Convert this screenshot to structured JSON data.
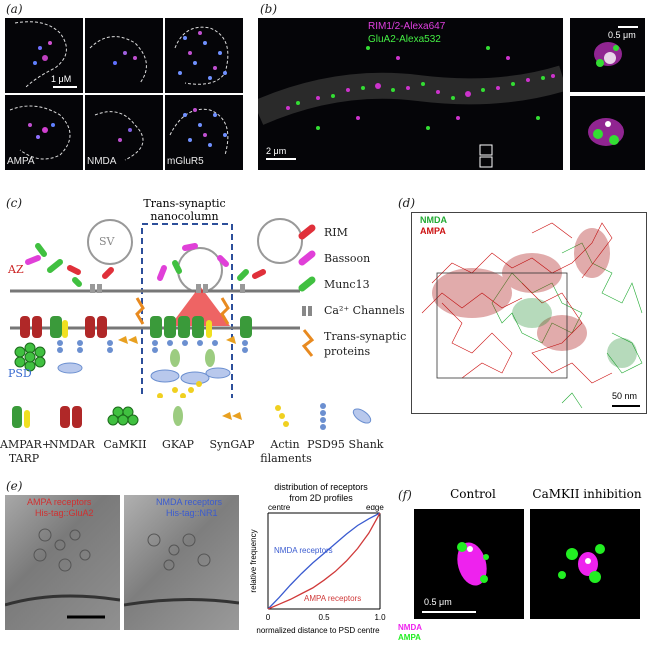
{
  "panel_a": {
    "label": "(a)",
    "scale": "1 μM",
    "captions": [
      "AMPA",
      "NMDA",
      "mGluR5"
    ]
  },
  "panel_b": {
    "label": "(b)",
    "legend": [
      {
        "text": "RIM1/2-Alexa647",
        "color": "#e040e0"
      },
      {
        "text": "GluA2-Alexa532",
        "color": "#44ee44"
      }
    ],
    "scale_main": "2 μm",
    "scale_inset": "0.5 μm"
  },
  "panel_c": {
    "label": "(c)",
    "title_line1": "Trans-synaptic",
    "title_line2": "nanocolumn",
    "sv": "SV",
    "az": "AZ",
    "psd": "PSD",
    "legend": [
      "RIM",
      "Bassoon",
      "Munc13",
      "Ca²⁺ Channels",
      "Trans-synaptic",
      "proteins"
    ],
    "bottom": [
      {
        "text": "AMPAR+",
        "sub": "TARP"
      },
      {
        "text": "NMDAR",
        "sub": ""
      },
      {
        "text": "CaMKII",
        "sub": ""
      },
      {
        "text": "GKAP",
        "sub": ""
      },
      {
        "text": "SynGAP",
        "sub": ""
      },
      {
        "text": "Actin",
        "sub": "filaments"
      },
      {
        "text": "PSD95",
        "sub": ""
      },
      {
        "text": "Shank",
        "sub": ""
      }
    ],
    "colors": {
      "rim": "#e0303a",
      "bassoon": "#e040d8",
      "munc13": "#40c040",
      "az": "#cc2222",
      "psd": "#3a6bd0"
    }
  },
  "panel_d": {
    "label": "(d)",
    "legend": [
      {
        "text": "NMDA",
        "color": "#22aa33"
      },
      {
        "text": "AMPA",
        "color": "#cc1111"
      }
    ],
    "scale": "50 nm"
  },
  "panel_e": {
    "label": "(e)",
    "em1": [
      "AMPA receptors",
      "His-tag::GluA2"
    ],
    "em2": [
      "NMDA receptors",
      "His-tag::NR1"
    ],
    "chart_title": [
      "distribution of receptors",
      "from 2D profiles"
    ]
  },
  "chart_data": {
    "type": "line",
    "title": "distribution of receptors from 2D profiles",
    "xlabel": "normalized distance to PSD centre",
    "ylabel": "relative frequency",
    "xlim": [
      0,
      1
    ],
    "ylim": [
      0,
      1
    ],
    "x_ticks": [
      "0",
      "0.5",
      "1.0"
    ],
    "annotations": [
      "centre",
      "edge"
    ],
    "series": [
      {
        "name": "NMDA receptors",
        "color": "#3a5bd0",
        "x": [
          0,
          0.1,
          0.2,
          0.3,
          0.4,
          0.5,
          0.6,
          0.7,
          0.8,
          0.9,
          1.0
        ],
        "y": [
          0,
          0.12,
          0.25,
          0.37,
          0.48,
          0.58,
          0.68,
          0.78,
          0.87,
          0.94,
          1.0
        ]
      },
      {
        "name": "AMPA receptors",
        "color": "#d03a3a",
        "x": [
          0,
          0.1,
          0.2,
          0.3,
          0.4,
          0.5,
          0.6,
          0.7,
          0.8,
          0.9,
          1.0
        ],
        "y": [
          0,
          0.05,
          0.1,
          0.16,
          0.22,
          0.3,
          0.39,
          0.5,
          0.63,
          0.79,
          1.0
        ]
      }
    ]
  },
  "panel_f": {
    "label": "(f)",
    "control": "Control",
    "inhibition": "CaMKII inhibition",
    "scale": "0.5 μm",
    "legend": [
      {
        "text": "NMDA",
        "color": "#ee22ee"
      },
      {
        "text": "AMPA",
        "color": "#22ee22"
      }
    ]
  }
}
